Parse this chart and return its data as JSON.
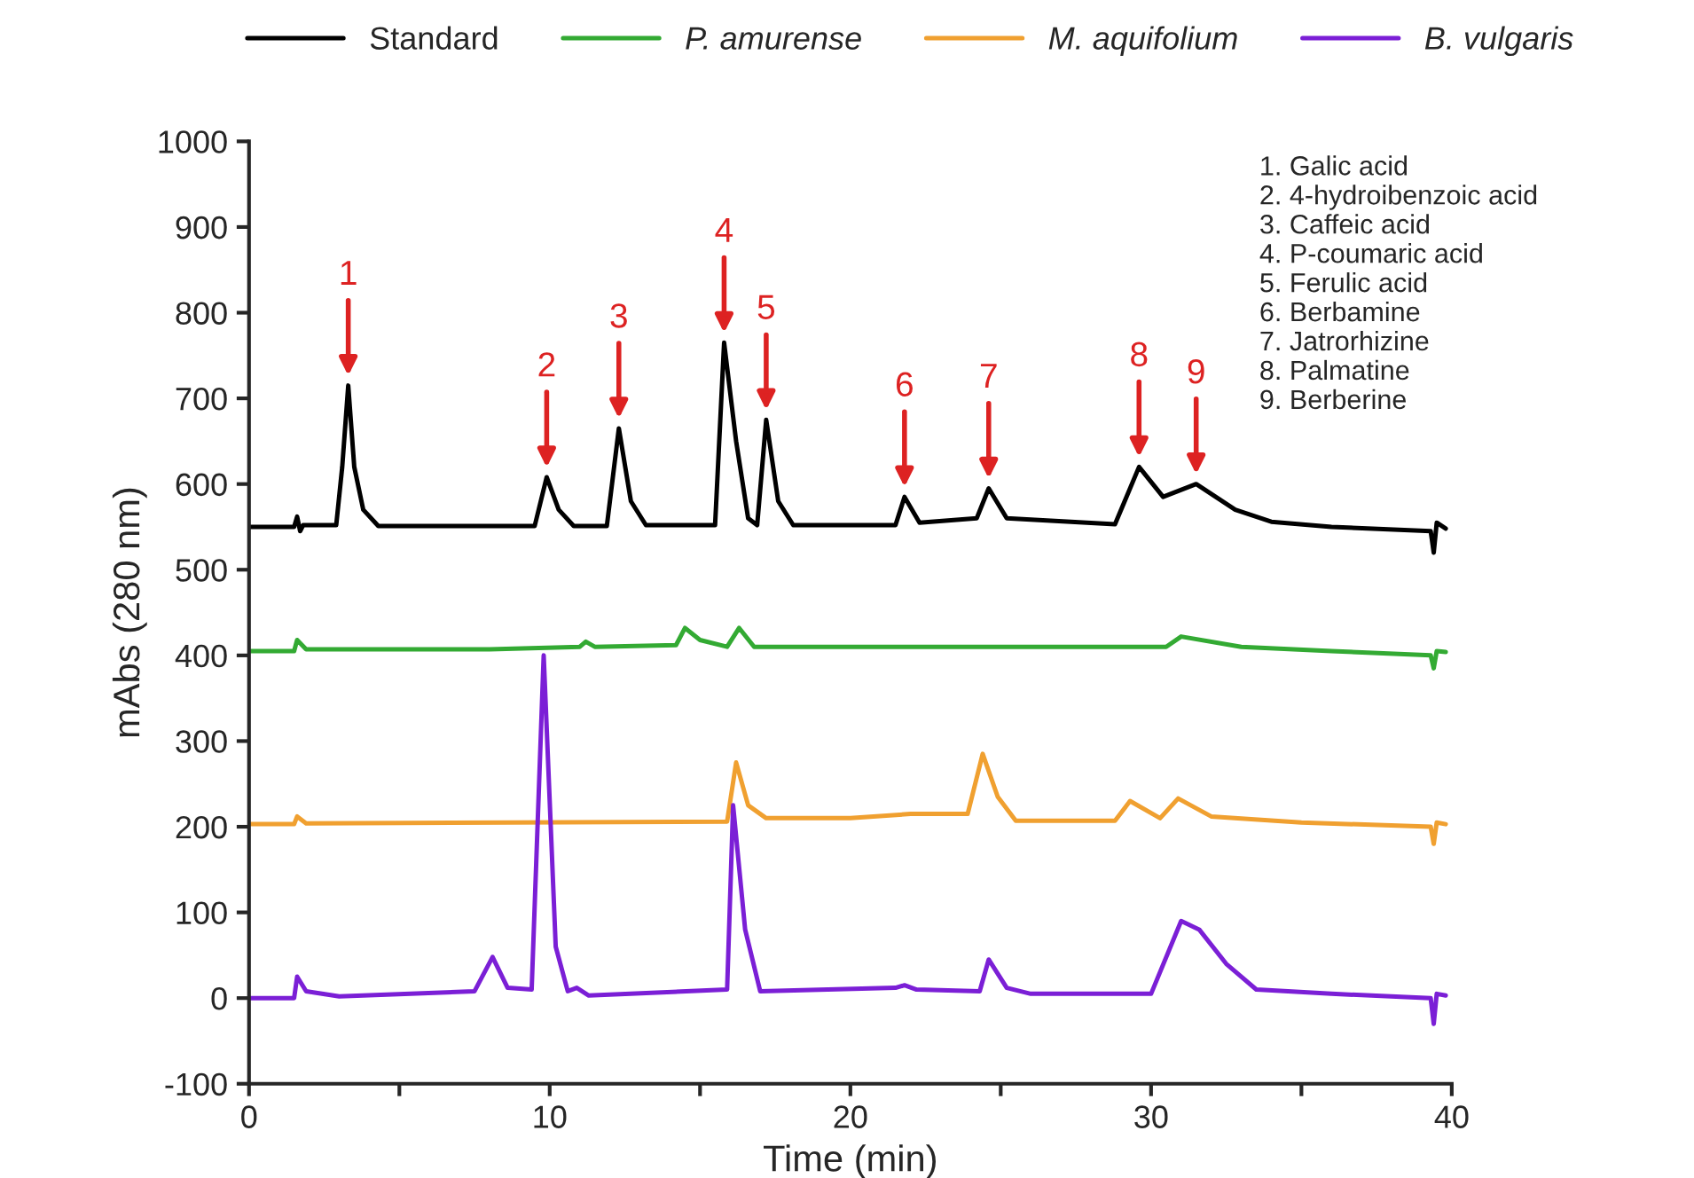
{
  "chart_data": {
    "type": "line",
    "xlabel": "Time (min)",
    "ylabel": "mAbs (280 nm)",
    "xlim": [
      0,
      40
    ],
    "xticks": [
      0,
      {
        "value": 5,
        "label": null
      },
      10,
      {
        "value": 15,
        "label": null
      },
      20,
      {
        "value": 25,
        "label": null
      },
      30,
      {
        "value": 35,
        "label": null
      },
      40
    ],
    "ylim": [
      -100,
      1000
    ],
    "yticks": [
      -100,
      0,
      100,
      200,
      300,
      400,
      500,
      600,
      700,
      800,
      900,
      1000
    ],
    "grid": false,
    "legend": "top",
    "marker": "none",
    "line_style": "solid",
    "series": [
      {
        "name": "Standard",
        "color": "#000000",
        "x": [
          0,
          1.5,
          1.6,
          1.7,
          1.8,
          2.9,
          3.1,
          3.3,
          3.5,
          3.8,
          4.3,
          9.5,
          9.9,
          10.3,
          10.8,
          11.9,
          12.3,
          12.7,
          13.2,
          15.5,
          15.8,
          16.2,
          16.6,
          16.9,
          17.2,
          17.6,
          18.1,
          21.5,
          21.8,
          22.3,
          24.2,
          24.6,
          25.2,
          28.8,
          29.6,
          30.4,
          31.5,
          32.8,
          34,
          36,
          39.3,
          39.4,
          39.5,
          39.8
        ],
        "values": [
          550,
          550,
          562,
          545,
          552,
          552,
          620,
          715,
          620,
          570,
          551,
          551,
          608,
          570,
          551,
          551,
          665,
          580,
          552,
          552,
          765,
          650,
          560,
          552,
          675,
          580,
          552,
          552,
          585,
          555,
          560,
          595,
          560,
          553,
          620,
          585,
          600,
          570,
          556,
          550,
          545,
          520,
          555,
          548
        ]
      },
      {
        "name": "P. amurense",
        "color": "#33aa33",
        "x": [
          0,
          1.5,
          1.6,
          1.9,
          8,
          11,
          11.2,
          11.5,
          14.2,
          14.5,
          15,
          15.9,
          16.3,
          16.8,
          30.5,
          31,
          33,
          36,
          39.3,
          39.4,
          39.5,
          39.8
        ],
        "values": [
          405,
          405,
          418,
          407,
          407,
          410,
          416,
          410,
          412,
          432,
          418,
          410,
          432,
          410,
          410,
          422,
          410,
          405,
          400,
          385,
          405,
          404
        ]
      },
      {
        "name": "M. aquifolium",
        "color": "#f0a030",
        "x": [
          0,
          1.5,
          1.6,
          1.9,
          15.9,
          16.2,
          16.6,
          17.2,
          20,
          22,
          23.9,
          24.4,
          24.9,
          25.5,
          28.8,
          29.3,
          30.3,
          30.9,
          32,
          35,
          39.3,
          39.4,
          39.5,
          39.8
        ],
        "values": [
          203,
          203,
          212,
          204,
          206,
          275,
          225,
          210,
          210,
          215,
          215,
          285,
          235,
          207,
          207,
          230,
          210,
          233,
          212,
          205,
          200,
          180,
          205,
          203
        ]
      },
      {
        "name": "B. vulgaris",
        "color": "#7b1fd6",
        "x": [
          0,
          1.5,
          1.6,
          1.9,
          3,
          7.5,
          8.1,
          8.6,
          9.4,
          9.8,
          10.2,
          10.6,
          10.9,
          11.3,
          15.9,
          16.1,
          16.5,
          17,
          21.5,
          21.8,
          22.2,
          24.3,
          24.6,
          25.2,
          26,
          30,
          31,
          31.6,
          32.5,
          33.5,
          36,
          39.3,
          39.4,
          39.5,
          39.8
        ],
        "values": [
          0,
          0,
          25,
          8,
          2,
          8,
          48,
          12,
          10,
          400,
          60,
          8,
          12,
          3,
          10,
          225,
          80,
          8,
          12,
          15,
          10,
          8,
          45,
          12,
          5,
          5,
          90,
          80,
          40,
          10,
          5,
          0,
          -30,
          5,
          3
        ]
      }
    ],
    "annotations": [
      {
        "text": "1",
        "x": 3.3,
        "y": 715
      },
      {
        "text": "2",
        "x": 9.9,
        "y": 608
      },
      {
        "text": "3",
        "x": 12.3,
        "y": 665
      },
      {
        "text": "4",
        "x": 15.8,
        "y": 765
      },
      {
        "text": "5",
        "x": 17.2,
        "y": 675
      },
      {
        "text": "6",
        "x": 21.8,
        "y": 585
      },
      {
        "text": "7",
        "x": 24.6,
        "y": 595
      },
      {
        "text": "8",
        "x": 29.6,
        "y": 620
      },
      {
        "text": "9",
        "x": 31.5,
        "y": 600
      },
      "1. Galic acid",
      "2. 4-hydroibenzoic acid",
      "3. Caffeic acid",
      "4. P-coumaric acid",
      "5. Ferulic acid",
      "6. Berbamine",
      "7. Jatrorhizine",
      "8. Palmatine",
      "9. Berberine"
    ]
  }
}
